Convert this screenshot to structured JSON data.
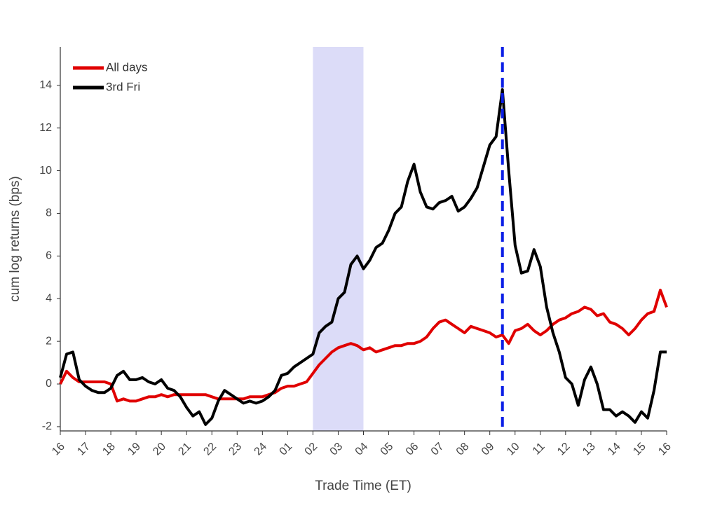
{
  "chart_data": {
    "type": "line",
    "xlabel": "Trade Time (ET)",
    "ylabel": "cum log returns (bps)",
    "x": [
      0,
      0.25,
      0.5,
      0.75,
      1,
      1.25,
      1.5,
      1.75,
      2,
      2.25,
      2.5,
      2.75,
      3,
      3.25,
      3.5,
      3.75,
      4,
      4.25,
      4.5,
      4.75,
      5,
      5.25,
      5.5,
      5.75,
      6,
      6.25,
      6.5,
      6.75,
      7,
      7.25,
      7.5,
      7.75,
      8,
      8.25,
      8.5,
      8.75,
      9,
      9.25,
      9.5,
      9.75,
      10,
      10.25,
      10.5,
      10.75,
      11,
      11.25,
      11.5,
      11.75,
      12,
      12.25,
      12.5,
      12.75,
      13,
      13.25,
      13.5,
      13.75,
      14,
      14.25,
      14.5,
      14.75,
      15,
      15.25,
      15.5,
      15.75,
      16,
      16.25,
      16.5,
      16.75,
      17,
      17.25,
      17.5,
      17.75,
      18,
      18.25,
      18.5,
      18.75,
      19,
      19.25,
      19.5,
      19.75,
      20,
      20.25,
      20.5,
      20.75,
      21,
      21.25,
      21.5,
      21.75,
      22,
      22.25,
      22.5,
      22.75,
      23,
      23.25,
      23.5,
      23.75,
      24
    ],
    "series": [
      {
        "name": "All days",
        "color": "#e00000",
        "values": [
          0,
          0.6,
          0.3,
          0.1,
          0.1,
          0.1,
          0.1,
          0.1,
          0,
          -0.8,
          -0.7,
          -0.8,
          -0.8,
          -0.7,
          -0.6,
          -0.6,
          -0.5,
          -0.6,
          -0.5,
          -0.5,
          -0.5,
          -0.5,
          -0.5,
          -0.5,
          -0.6,
          -0.7,
          -0.7,
          -0.7,
          -0.7,
          -0.7,
          -0.6,
          -0.6,
          -0.6,
          -0.5,
          -0.4,
          -0.2,
          -0.1,
          -0.1,
          0,
          0.1,
          0.5,
          0.9,
          1.2,
          1.5,
          1.7,
          1.8,
          1.9,
          1.8,
          1.6,
          1.7,
          1.5,
          1.6,
          1.7,
          1.8,
          1.8,
          1.9,
          1.9,
          2.0,
          2.2,
          2.6,
          2.9,
          3.0,
          2.8,
          2.6,
          2.4,
          2.7,
          2.6,
          2.5,
          2.4,
          2.2,
          2.3,
          1.9,
          2.5,
          2.6,
          2.8,
          2.5,
          2.3,
          2.5,
          2.8,
          3.0,
          3.1,
          3.3,
          3.4,
          3.6,
          3.5,
          3.2,
          3.3,
          2.9,
          2.8,
          2.6,
          2.3,
          2.6,
          3.0,
          3.3,
          3.4,
          4.4,
          3.6
        ]
      },
      {
        "name": "3rd Fri",
        "color": "#000000",
        "values": [
          0.3,
          1.4,
          1.5,
          0.2,
          -0.1,
          -0.3,
          -0.4,
          -0.4,
          -0.2,
          0.4,
          0.6,
          0.2,
          0.2,
          0.3,
          0.1,
          0,
          0.2,
          -0.2,
          -0.3,
          -0.6,
          -1.1,
          -1.5,
          -1.3,
          -1.9,
          -1.6,
          -0.8,
          -0.3,
          -0.5,
          -0.7,
          -0.9,
          -0.8,
          -0.9,
          -0.8,
          -0.6,
          -0.3,
          0.4,
          0.5,
          0.8,
          1.0,
          1.2,
          1.4,
          2.4,
          2.7,
          2.9,
          4.0,
          4.3,
          5.6,
          6.0,
          5.4,
          5.8,
          6.4,
          6.6,
          7.2,
          8.0,
          8.3,
          9.5,
          10.3,
          9.0,
          8.3,
          8.2,
          8.5,
          8.6,
          8.8,
          8.1,
          8.3,
          8.7,
          9.2,
          10.2,
          11.2,
          11.6,
          13.8,
          10.0,
          6.5,
          5.2,
          5.3,
          6.3,
          5.5,
          3.6,
          2.4,
          1.5,
          0.3,
          0.0,
          -1.0,
          0.2,
          0.8,
          0.0,
          -1.2,
          -1.2,
          -1.5,
          -1.3,
          -1.5,
          -1.8,
          -1.3,
          -1.6,
          -0.3,
          1.5,
          1.5
        ]
      }
    ],
    "xlim": [
      0,
      24
    ],
    "xticks": [
      {
        "value": 0,
        "label": "16"
      },
      {
        "value": 1,
        "label": "17"
      },
      {
        "value": 2,
        "label": "18"
      },
      {
        "value": 3,
        "label": "19"
      },
      {
        "value": 4,
        "label": "20"
      },
      {
        "value": 5,
        "label": "21"
      },
      {
        "value": 6,
        "label": "22"
      },
      {
        "value": 7,
        "label": "23"
      },
      {
        "value": 8,
        "label": "24"
      },
      {
        "value": 9,
        "label": "01"
      },
      {
        "value": 10,
        "label": "02"
      },
      {
        "value": 11,
        "label": "03"
      },
      {
        "value": 12,
        "label": "04"
      },
      {
        "value": 13,
        "label": "05"
      },
      {
        "value": 14,
        "label": "06"
      },
      {
        "value": 15,
        "label": "07"
      },
      {
        "value": 16,
        "label": "08"
      },
      {
        "value": 17,
        "label": "09"
      },
      {
        "value": 18,
        "label": "10"
      },
      {
        "value": 19,
        "label": "11"
      },
      {
        "value": 20,
        "label": "12"
      },
      {
        "value": 21,
        "label": "13"
      },
      {
        "value": 22,
        "label": "14"
      },
      {
        "value": 23,
        "label": "15"
      },
      {
        "value": 24,
        "label": "16"
      }
    ],
    "ylim": [
      -2.2,
      15.8
    ],
    "yticks": [
      -2,
      0,
      2,
      4,
      6,
      8,
      10,
      12,
      14
    ],
    "shaded_region": [
      10,
      12
    ],
    "shade_color": "#dcdcf8",
    "vline": {
      "x": 17.5,
      "color": "#0a1ee6"
    },
    "legend": "upper left"
  }
}
